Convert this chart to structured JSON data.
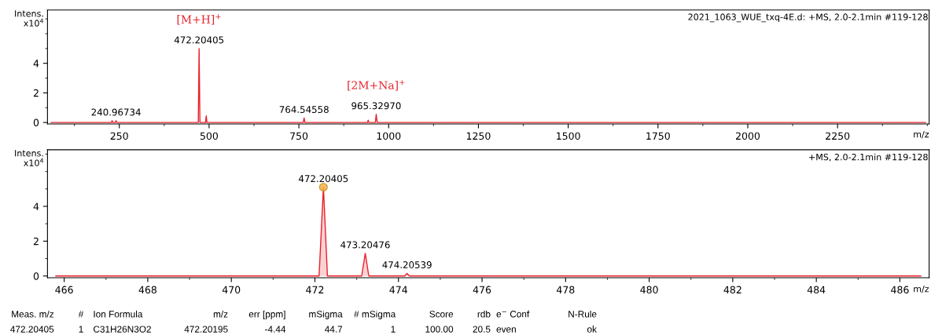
{
  "chart_data": [
    {
      "type": "line",
      "xlabel": "m/z",
      "ylabel": "Intens.\nx10$^{4}$",
      "xlim": [
        50,
        2505
      ],
      "ylim": [
        -0.1,
        7.6
      ],
      "xticks": [
        250,
        500,
        750,
        1000,
        1250,
        1500,
        1750,
        2000,
        2250
      ],
      "yticks": [
        0,
        2,
        4
      ],
      "grid": false,
      "legend": false,
      "marker": "none",
      "line_style": "solid",
      "series": [
        {
          "color": "#e8202a",
          "x": [
            60,
            228,
            230,
            232,
            239,
            240.96734,
            243,
            470,
            472.20405,
            474.5,
            490,
            492,
            494,
            762,
            764.54558,
            767,
            941,
            943,
            945,
            963,
            965.3297,
            968,
            2495
          ],
          "values": [
            0,
            0,
            0.12,
            0,
            0,
            0.12,
            0,
            0,
            5.0,
            0,
            0,
            0.45,
            0,
            0,
            0.3,
            0,
            0,
            0.15,
            0,
            0,
            0.55,
            0,
            0
          ]
        }
      ],
      "annotations": [
        {
          "text": "472.20405",
          "x": 472.20405,
          "y": 5.0
        },
        {
          "text": "[M+H]$^{+}$",
          "x": 472.20405,
          "y": 5.0
        },
        {
          "text": "240.96734",
          "x": 240.96734,
          "y": 0.12
        },
        {
          "text": "764.54558",
          "x": 764.54558,
          "y": 0.3
        },
        {
          "text": "965.32970",
          "x": 965.3297,
          "y": 0.55
        },
        {
          "text": "[2M+Na]$^{+}$",
          "x": 965.3297,
          "y": 0.55
        },
        "2021_1063_WUE_txq-4E.d: +MS, 2.0-2.1min #119-128"
      ]
    },
    {
      "type": "area",
      "xlabel": "m/z",
      "ylabel": "Intens.\nx10$^{4}$",
      "xlim": [
        465.6,
        486.7
      ],
      "ylim": [
        -0.1,
        7.25
      ],
      "xticks": [
        466,
        468,
        470,
        472,
        474,
        476,
        478,
        480,
        482,
        484,
        486
      ],
      "yticks": [
        0,
        2,
        4
      ],
      "grid": false,
      "legend": false,
      "line_style": "solid",
      "series": [
        {
          "color": "#e8202a",
          "x": [
            465.8,
            472.1,
            472.20405,
            472.3,
            473.12,
            473.20476,
            473.29,
            474.15,
            474.20539,
            474.26,
            486.5
          ],
          "values": [
            0,
            0,
            5.1,
            0,
            0,
            1.3,
            0,
            0,
            0.15,
            0,
            0
          ]
        },
        {
          "type": "scatter",
          "color": "#f0b040",
          "marker": "circle",
          "x": [
            472.20405
          ],
          "values": [
            5.1
          ]
        }
      ],
      "annotations": [
        {
          "text": "472.20405",
          "x": 472.20405,
          "y": 5.1
        },
        {
          "text": "473.20476",
          "x": 473.20476,
          "y": 1.3
        },
        {
          "text": "474.20539",
          "x": 474.20539,
          "y": 0.15
        },
        "+MS, 2.0-2.1min #119-128"
      ]
    },
    {
      "type": "other",
      "annotations": [
        "Meas. m/z",
        "#",
        "Ion Formula",
        "m/z",
        "err [ppm]",
        "mSigma",
        "# mSigma",
        "Score",
        "rdb",
        "e$^{−}$ Conf",
        "N-Rule",
        "472.20405",
        "1",
        "C31H26N3O2",
        "472.20195",
        "-4.44",
        "44.7",
        "1",
        "100.00",
        "20.5",
        "even",
        "ok"
      ]
    }
  ]
}
